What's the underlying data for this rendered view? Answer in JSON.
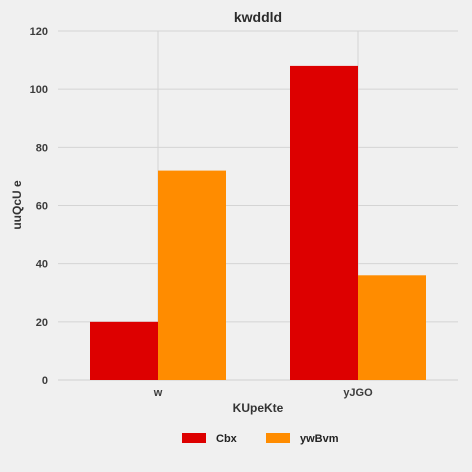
{
  "chart_data": {
    "type": "bar",
    "title": "kwddld",
    "xlabel": "KUpeKte",
    "ylabel": "uuQcU e",
    "categories": [
      "w",
      "yJGO"
    ],
    "series": [
      {
        "name": "Cbx",
        "color": "#dd0000",
        "values": [
          20,
          108
        ]
      },
      {
        "name": "ywBvm",
        "color": "#ff8c00",
        "values": [
          72,
          36
        ]
      }
    ],
    "ylim": [
      0,
      120
    ],
    "yticks": [
      0,
      20,
      40,
      60,
      80,
      100,
      120
    ],
    "grid": true,
    "legend_position": "bottom-center"
  }
}
